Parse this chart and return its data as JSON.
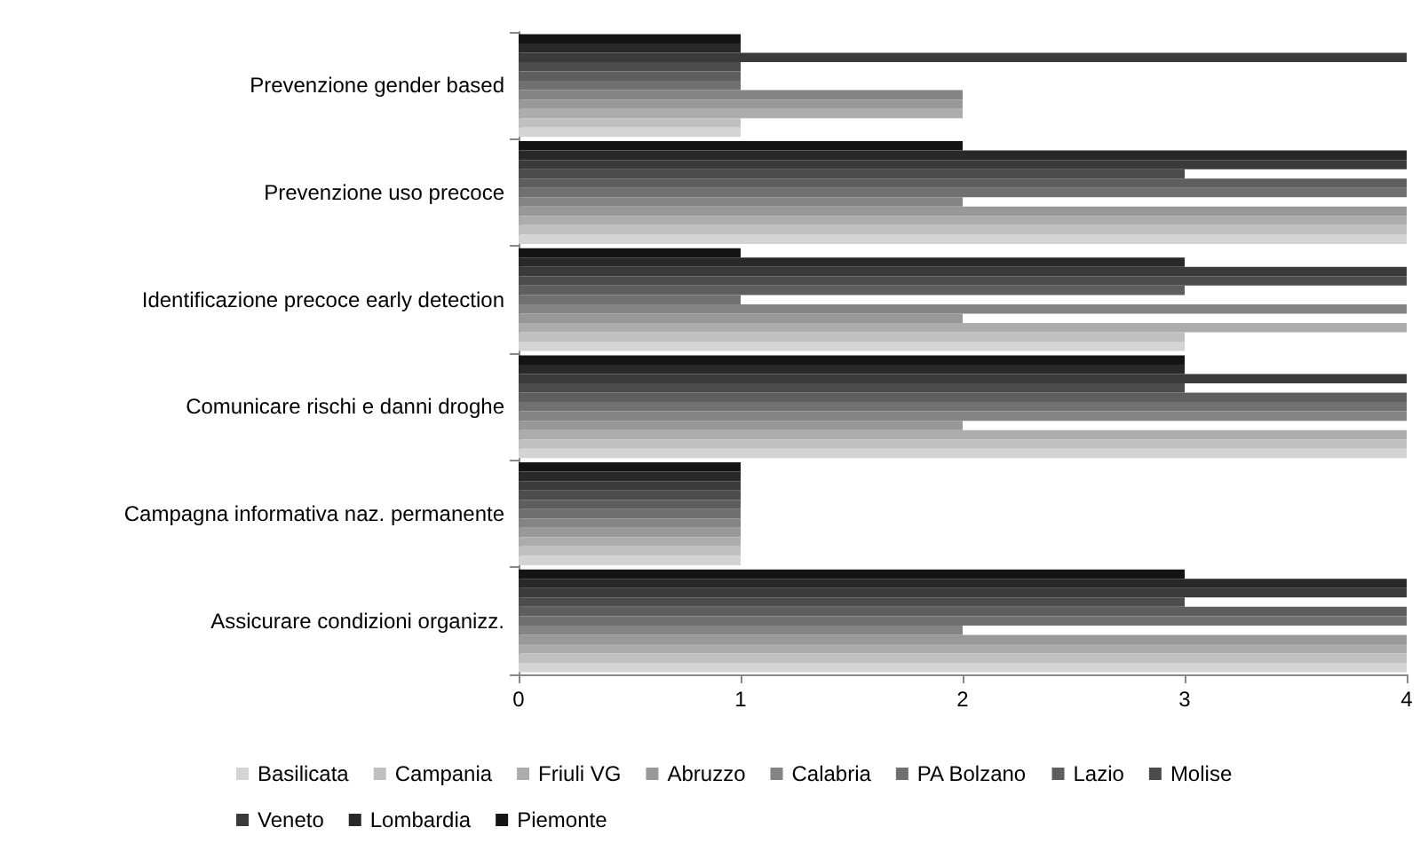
{
  "chart_data": {
    "type": "bar",
    "orientation": "horizontal",
    "categories": [
      "Prevenzione gender based",
      "Prevenzione uso precoce",
      "Identificazione precoce early detection",
      "Comunicare rischi e danni droghe",
      "Campagna informativa naz. permanente",
      "Assicurare condizioni organizz."
    ],
    "series": [
      {
        "name": "Basilicata",
        "color": "#d4d4d4",
        "values": [
          1,
          4,
          3,
          4,
          1,
          4
        ]
      },
      {
        "name": "Campania",
        "color": "#c0c0c0",
        "values": [
          1,
          4,
          3,
          4,
          1,
          4
        ]
      },
      {
        "name": "Friuli VG",
        "color": "#acacac",
        "values": [
          2,
          4,
          4,
          4,
          1,
          4
        ]
      },
      {
        "name": "Abruzzo",
        "color": "#989898",
        "values": [
          2,
          4,
          2,
          2,
          1,
          4
        ]
      },
      {
        "name": "Calabria",
        "color": "#848484",
        "values": [
          2,
          2,
          4,
          4,
          1,
          2
        ]
      },
      {
        "name": "PA Bolzano",
        "color": "#707070",
        "values": [
          1,
          4,
          1,
          4,
          1,
          4
        ]
      },
      {
        "name": "Lazio",
        "color": "#5e5e5e",
        "values": [
          1,
          4,
          3,
          4,
          1,
          4
        ]
      },
      {
        "name": "Molise",
        "color": "#4c4c4c",
        "values": [
          1,
          3,
          4,
          3,
          1,
          3
        ]
      },
      {
        "name": "Veneto",
        "color": "#3a3a3a",
        "values": [
          4,
          4,
          4,
          4,
          1,
          4
        ]
      },
      {
        "name": "Lombardia",
        "color": "#282828",
        "values": [
          1,
          4,
          3,
          3,
          1,
          4
        ]
      },
      {
        "name": "Piemonte",
        "color": "#141414",
        "values": [
          1,
          2,
          1,
          3,
          1,
          3
        ]
      }
    ],
    "xlim": [
      0,
      4
    ],
    "xticks": [
      0,
      1,
      2,
      3,
      4
    ],
    "grid": false,
    "legend": "bottom"
  }
}
